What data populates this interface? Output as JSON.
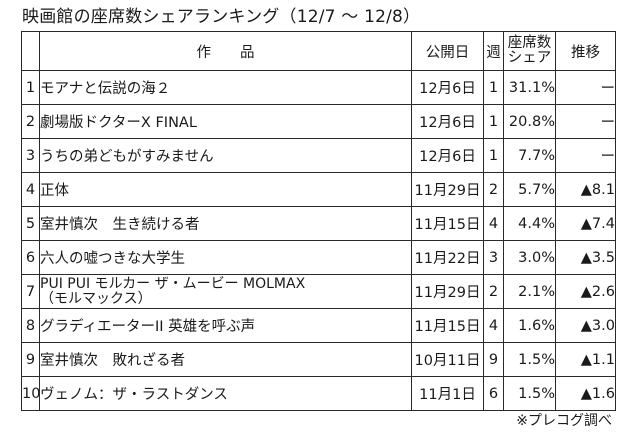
{
  "title": "映画館の座席数シェアランキング（12/7 ～ 12/8）",
  "columns": {
    "title": "作　　品",
    "release": "公開日",
    "week": "週",
    "share_line1": "座席数",
    "share_line2": "シェア",
    "trend": "推移"
  },
  "rows": [
    {
      "rank": "1",
      "title": "モアナと伝説の海２",
      "title_line2": "",
      "release": "12月6日",
      "week": "1",
      "share": "31.1%",
      "trend": "ー"
    },
    {
      "rank": "2",
      "title": "劇場版ドクターX FINAL",
      "title_line2": "",
      "release": "12月6日",
      "week": "1",
      "share": "20.8%",
      "trend": "ー"
    },
    {
      "rank": "3",
      "title": "うちの弟どもがすみません",
      "title_line2": "",
      "release": "12月6日",
      "week": "1",
      "share": "7.7%",
      "trend": "ー"
    },
    {
      "rank": "4",
      "title": "正体",
      "title_line2": "",
      "release": "11月29日",
      "week": "2",
      "share": "5.7%",
      "trend": "▲8.1"
    },
    {
      "rank": "5",
      "title": "室井慎次　生き続ける者",
      "title_line2": "",
      "release": "11月15日",
      "week": "4",
      "share": "4.4%",
      "trend": "▲7.4"
    },
    {
      "rank": "6",
      "title": "六人の嘘つきな大学生",
      "title_line2": "",
      "release": "11月22日",
      "week": "3",
      "share": "3.0%",
      "trend": "▲3.5"
    },
    {
      "rank": "7",
      "title": "PUI PUI モルカー ザ・ムービー MOLMAX",
      "title_line2": "（モルマックス）",
      "release": "11月29日",
      "week": "2",
      "share": "2.1%",
      "trend": "▲2.6"
    },
    {
      "rank": "8",
      "title": "グラディエーターII 英雄を呼ぶ声",
      "title_line2": "",
      "release": "11月15日",
      "week": "4",
      "share": "1.6%",
      "trend": "▲3.0"
    },
    {
      "rank": "9",
      "title": "室井慎次　敗れざる者",
      "title_line2": "",
      "release": "10月11日",
      "week": "9",
      "share": "1.5%",
      "trend": "▲1.1"
    },
    {
      "rank": "10",
      "title": "ヴェノム：ザ・ラストダンス",
      "title_line2": "",
      "release": "11月1日",
      "week": "6",
      "share": "1.5%",
      "trend": "▲1.6"
    }
  ],
  "note": "※プレコグ調べ"
}
